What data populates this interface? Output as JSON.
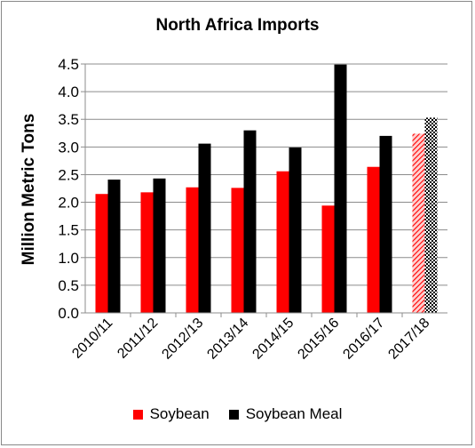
{
  "chart_data": {
    "type": "bar",
    "title": "North Africa Imports",
    "ylabel": "Million Metric Tons",
    "xlabel": "",
    "categories": [
      "2010/11",
      "2011/12",
      "2012/13",
      "2013/14",
      "2014/15",
      "2015/16",
      "2016/17",
      "2017/18"
    ],
    "series": [
      {
        "name": "Soybean",
        "color": "#ff0000",
        "values": [
          2.15,
          2.18,
          2.27,
          2.26,
          2.56,
          1.94,
          2.64,
          3.24
        ]
      },
      {
        "name": "Soybean Meal",
        "color": "#000000",
        "values": [
          2.41,
          2.43,
          3.06,
          3.3,
          2.99,
          4.49,
          3.2,
          3.53
        ]
      }
    ],
    "projected_category": "2017/18",
    "ylim": [
      0,
      4.5
    ],
    "ytick_step": 0.5,
    "ytick_labels": [
      "0.0",
      "0.5",
      "1.0",
      "1.5",
      "2.0",
      "2.5",
      "3.0",
      "3.5",
      "4.0",
      "4.5"
    ],
    "grid": true,
    "legend": "bottom"
  }
}
